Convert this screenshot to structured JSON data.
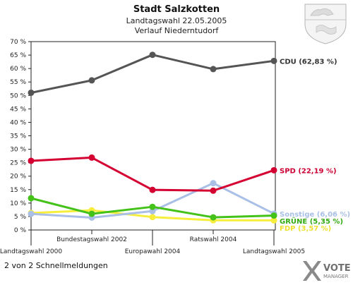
{
  "header": {
    "title": "Stadt Salzkotten",
    "subtitle1": "Landtagswahl 22.05.2005",
    "subtitle2": "Verlauf Niederntudorf"
  },
  "footer": {
    "note": "2 von 2 Schnellmeldungen",
    "brand_line1": "VOTE",
    "brand_line2": "MANAGER"
  },
  "icons": {
    "crest": "coat-of-arms-icon",
    "brand": "votemanager-logo-icon"
  },
  "chart_data": {
    "type": "line",
    "categories": [
      "Landtagswahl 2000",
      "Bundestagswahl 2002",
      "Europawahl 2004",
      "Ratswahl 2004",
      "Landtagswahl 2005"
    ],
    "ylim": [
      0,
      70
    ],
    "yticks": [
      0,
      5,
      10,
      15,
      20,
      25,
      30,
      35,
      40,
      45,
      50,
      55,
      60,
      65,
      70
    ],
    "ytick_suffix": " %",
    "grid": false,
    "series": [
      {
        "name": "CDU",
        "color": "#555555",
        "values": [
          51,
          55.6,
          65.1,
          59.8,
          62.83
        ],
        "end_label": "CDU (62,83 %)",
        "label_color": "#333333"
      },
      {
        "name": "SPD",
        "color": "#d40032",
        "values": [
          25.7,
          26.9,
          14.9,
          14.6,
          22.19
        ],
        "end_label": "SPD (22,19 %)",
        "label_color": "#cc0033"
      },
      {
        "name": "Sonstige",
        "color": "#a9bfe6",
        "values": [
          6,
          4.6,
          7,
          17.4,
          6.06
        ],
        "end_label": "Sonstige (6,06 %)",
        "label_color": "#a9bfe6"
      },
      {
        "name": "GRÜNE",
        "color": "#44c21a",
        "values": [
          11.8,
          6,
          8.6,
          4.7,
          5.35
        ],
        "end_label": "GRÜNE (5,35 %)",
        "label_color": "#33aa11"
      },
      {
        "name": "FDP",
        "color": "#f7ee3c",
        "values": [
          6.3,
          7.3,
          4.8,
          3.6,
          3.57
        ],
        "end_label": "FDP (3,57 %)",
        "label_color": "#eee030"
      }
    ]
  }
}
